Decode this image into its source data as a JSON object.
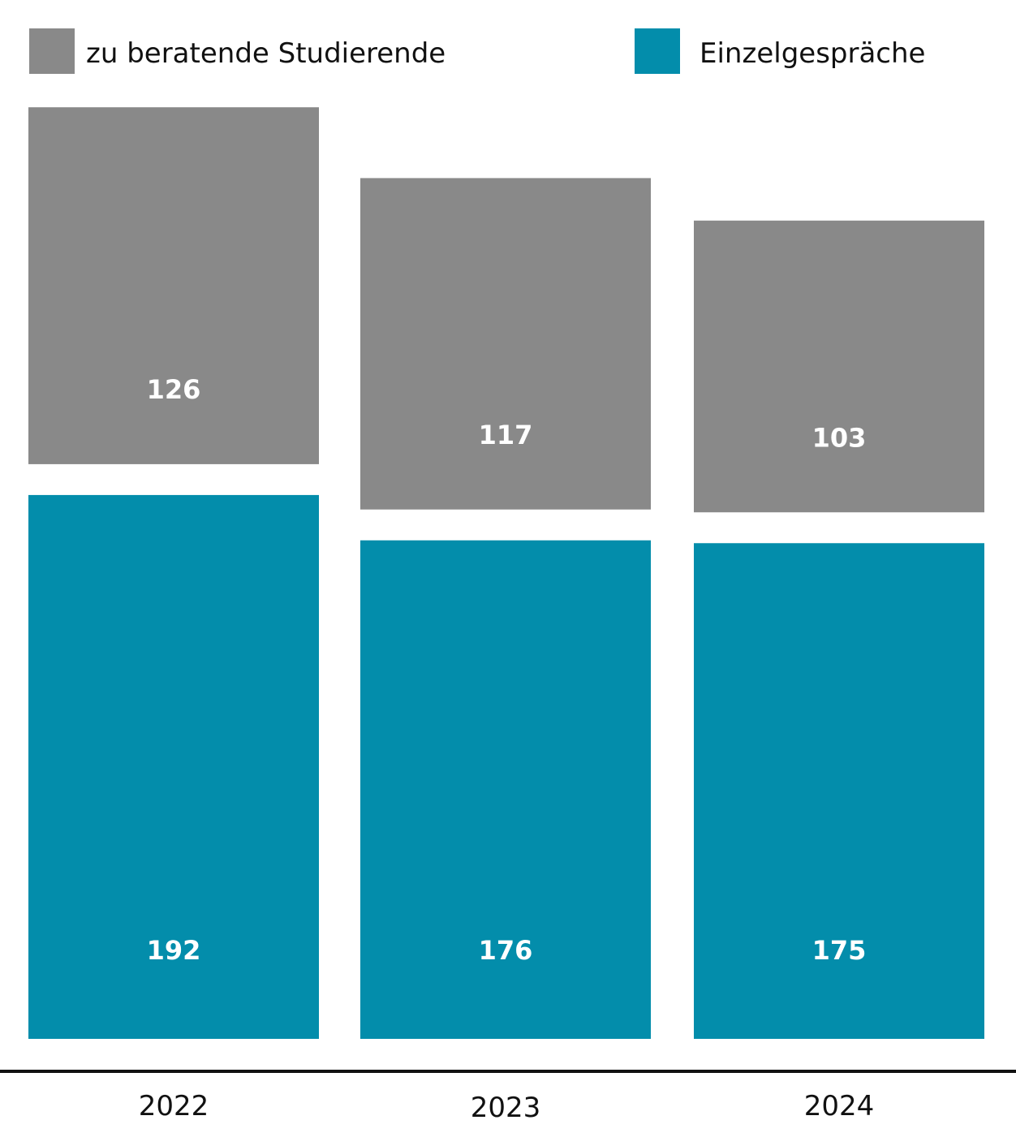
{
  "chart_data": {
    "type": "bar",
    "title": "",
    "xlabel": "",
    "ylabel": "",
    "categories": [
      "2022",
      "2023",
      "2024"
    ],
    "series": [
      {
        "name": "zu beratende Studierende",
        "values": [
          126,
          117,
          103
        ],
        "color": "#898989"
      },
      {
        "name": "Einzelgespräche",
        "values": [
          192,
          176,
          175
        ],
        "color": "#038dab"
      }
    ],
    "legend": "top",
    "grid": false
  },
  "colors": {
    "axis": "#111111",
    "background": "#ffffff"
  }
}
